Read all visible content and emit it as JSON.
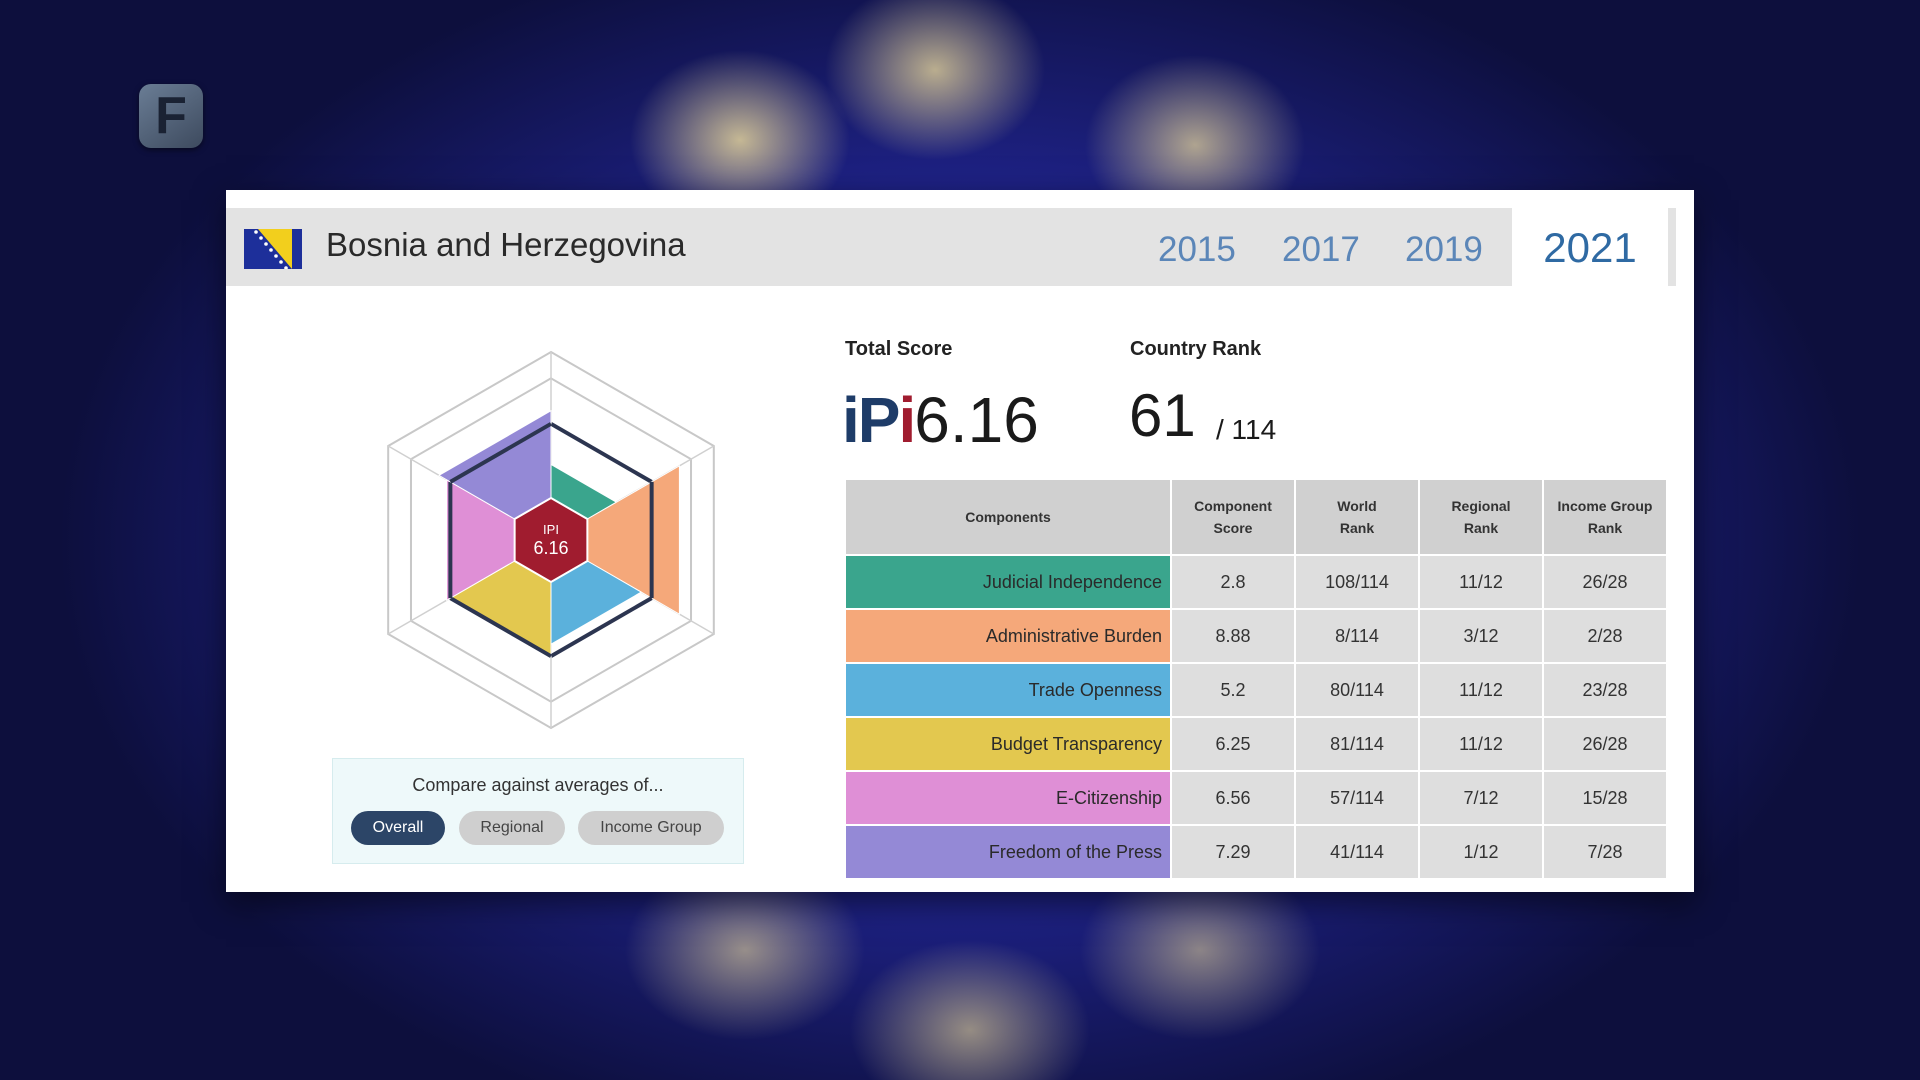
{
  "logo": {
    "text": "F"
  },
  "header": {
    "country": "Bosnia and Herzegovina",
    "years": [
      "2015",
      "2017",
      "2019"
    ],
    "active_year": "2021"
  },
  "radar": {
    "center_label": "IPI",
    "center_value": "6.16",
    "scale_max": 10,
    "components": [
      {
        "name": "Judicial Independence",
        "score": 2.8,
        "color": "#3aa58d"
      },
      {
        "name": "Administrative Burden",
        "score": 8.88,
        "color": "#f5a87a"
      },
      {
        "name": "Trade Openness",
        "score": 5.2,
        "color": "#5bb1dc"
      },
      {
        "name": "Budget Transparency",
        "score": 6.25,
        "color": "#e3c84f"
      },
      {
        "name": "E-Citizenship",
        "score": 6.56,
        "color": "#df8fd6"
      },
      {
        "name": "Freedom of the Press",
        "score": 7.29,
        "color": "#9489d6"
      }
    ]
  },
  "compare": {
    "title": "Compare against averages of...",
    "buttons": {
      "overall": "Overall",
      "regional": "Regional",
      "income": "Income Group"
    }
  },
  "scores": {
    "total_label": "Total Score",
    "ipi_logo_a": "i",
    "ipi_logo_b": "P",
    "ipi_logo_c": "i",
    "total_value": "6.16",
    "rank_label": "Country Rank",
    "rank_value": "61",
    "rank_of": "/ 114"
  },
  "table": {
    "headers": {
      "components": "Components",
      "score_a": "Component",
      "score_b": "Score",
      "world_a": "World",
      "world_b": "Rank",
      "regional_a": "Regional",
      "regional_b": "Rank",
      "income_a": "Income Group",
      "income_b": "Rank"
    },
    "rows": [
      {
        "name": "Judicial Independence",
        "score": "2.8",
        "world": "108/114",
        "regional": "11/12",
        "income": "26/28",
        "color": "#3aa58d"
      },
      {
        "name": "Administrative Burden",
        "score": "8.88",
        "world": "8/114",
        "regional": "3/12",
        "income": "2/28",
        "color": "#f5a87a"
      },
      {
        "name": "Trade Openness",
        "score": "5.2",
        "world": "80/114",
        "regional": "11/12",
        "income": "23/28",
        "color": "#5bb1dc"
      },
      {
        "name": "Budget Transparency",
        "score": "6.25",
        "world": "81/114",
        "regional": "11/12",
        "income": "26/28",
        "color": "#e3c84f"
      },
      {
        "name": "E-Citizenship",
        "score": "6.56",
        "world": "57/114",
        "regional": "7/12",
        "income": "15/28",
        "color": "#df8fd6"
      },
      {
        "name": "Freedom of the Press",
        "score": "7.29",
        "world": "41/114",
        "regional": "1/12",
        "income": "7/28",
        "color": "#9489d6"
      }
    ]
  }
}
